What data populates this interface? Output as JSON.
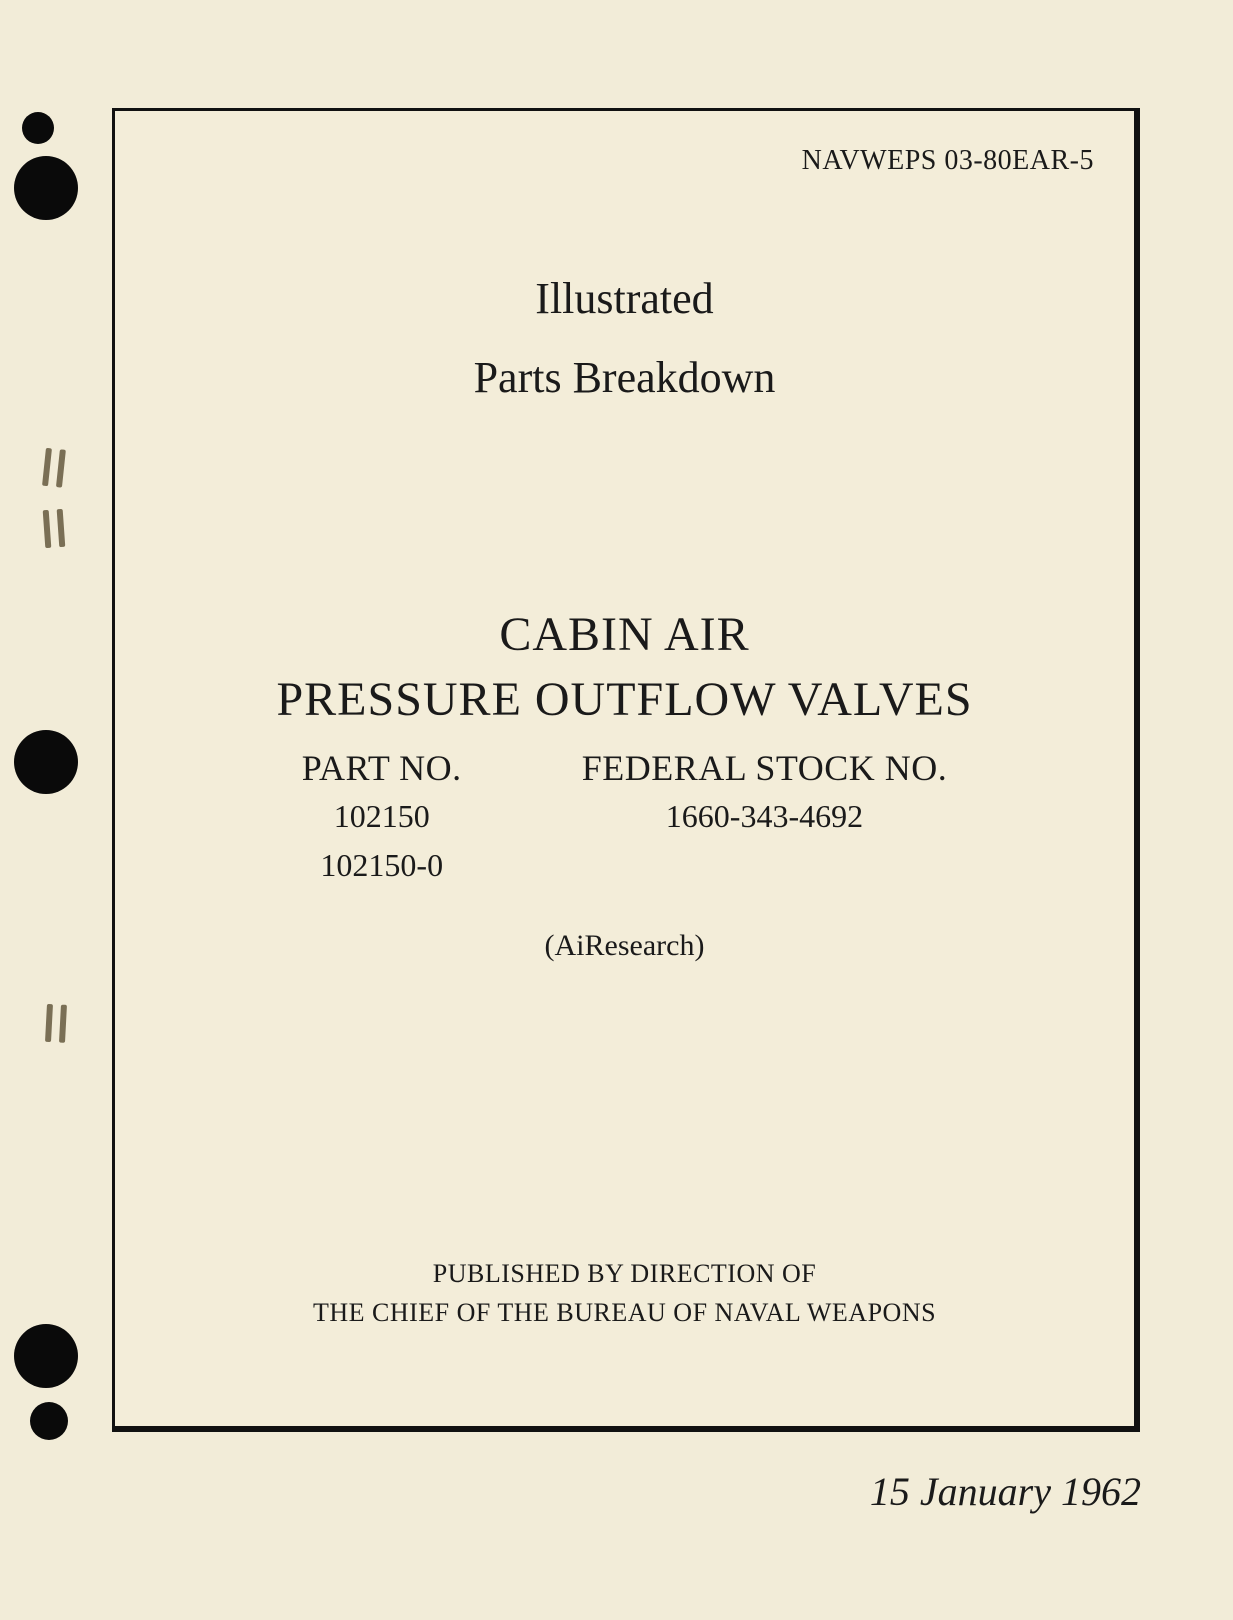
{
  "document_number": "NAVWEPS 03-80EAR-5",
  "heading": {
    "line1": "Illustrated",
    "line2": "Parts Breakdown"
  },
  "title": {
    "line1": "CABIN AIR",
    "line2": "PRESSURE OUTFLOW VALVES"
  },
  "part_no": {
    "label": "PART NO.",
    "values": [
      "102150",
      "102150-0"
    ]
  },
  "federal_stock_no": {
    "label": "FEDERAL STOCK NO.",
    "value": "1660-343-4692"
  },
  "manufacturer": "(AiResearch)",
  "publisher": {
    "line1": "PUBLISHED BY DIRECTION OF",
    "line2": "THE CHIEF OF THE BUREAU OF NAVAL WEAPONS"
  },
  "date": "15 January 1962",
  "colors": {
    "page_bg": "#f2ecd8",
    "text": "#1a1a1a",
    "border": "#111111"
  }
}
